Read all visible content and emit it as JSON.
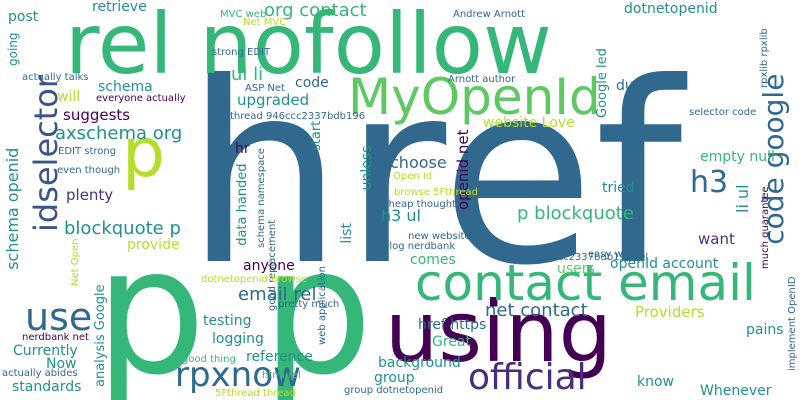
{
  "palette": {
    "teal_dark": "#31688e",
    "teal": "#21918c",
    "green": "#35b779",
    "green_bright": "#5ec962",
    "lime": "#b5de2b",
    "yellow": "#cbe11e",
    "purple": "#440154",
    "purple_mid": "#472d7b",
    "blue": "#3b528b",
    "indigo": "#46327e",
    "background": "#ffffff"
  },
  "words": [
    {
      "text": "href",
      "color": "#31688e"
    },
    {
      "text": "p p",
      "color": "#35b779"
    },
    {
      "text": "rel nofollow",
      "color": "#35b779"
    },
    {
      "text": "using",
      "color": "#440154"
    },
    {
      "text": "contact email",
      "color": "#35b779"
    },
    {
      "text": "MyOpenId",
      "color": "#5ec962"
    },
    {
      "text": "p",
      "color": "#b5de2b"
    },
    {
      "text": "official",
      "color": "#472d7b"
    },
    {
      "text": "idselector",
      "color": "#3b528b"
    },
    {
      "text": "rpxnow",
      "color": "#31688e"
    },
    {
      "text": "use",
      "color": "#31688e"
    },
    {
      "text": "code google",
      "color": "#31688e"
    },
    {
      "text": "blockquote p",
      "color": "#21918c"
    },
    {
      "text": "h3",
      "color": "#31688e"
    },
    {
      "text": "p blockquote",
      "color": "#35b779"
    },
    {
      "text": "email rel",
      "color": "#31688e"
    },
    {
      "text": "net contact",
      "color": "#31688e"
    },
    {
      "text": "org contact",
      "color": "#35b779"
    },
    {
      "text": "axschema org",
      "color": "#21918c"
    },
    {
      "text": "schema openid",
      "color": "#21918c"
    },
    {
      "text": "openid net",
      "color": "#440154"
    },
    {
      "text": "ul li",
      "color": "#35b779"
    },
    {
      "text": "h3 ul",
      "color": "#21918c"
    },
    {
      "text": "li ul",
      "color": "#21918c"
    },
    {
      "text": "analysis Google",
      "color": "#21918c"
    },
    {
      "text": "Google led",
      "color": "#21918c"
    },
    {
      "text": "upgraded",
      "color": "#21918c"
    },
    {
      "text": "suggests",
      "color": "#440154"
    },
    {
      "text": "plenty",
      "color": "#46327e"
    },
    {
      "text": "choose",
      "color": "#31688e"
    },
    {
      "text": "testing",
      "color": "#21918c"
    },
    {
      "text": "logging",
      "color": "#21918c"
    },
    {
      "text": "Currently",
      "color": "#21918c"
    },
    {
      "text": "reference",
      "color": "#21918c"
    },
    {
      "text": "href https",
      "color": "#31688e"
    },
    {
      "text": "Great",
      "color": "#35b779"
    },
    {
      "text": "background",
      "color": "#21918c"
    },
    {
      "text": "group",
      "color": "#21918c"
    },
    {
      "text": "Providers",
      "color": "#b5de2b"
    },
    {
      "text": "Whenever",
      "color": "#21918c"
    },
    {
      "text": "know",
      "color": "#21918c"
    },
    {
      "text": "pains",
      "color": "#21918c"
    },
    {
      "text": "standards",
      "color": "#21918c"
    },
    {
      "text": "Now",
      "color": "#21918c"
    },
    {
      "text": "anyone",
      "color": "#440154"
    },
    {
      "text": "provide",
      "color": "#b5de2b"
    },
    {
      "text": "users",
      "color": "#5ec962"
    },
    {
      "text": "comes",
      "color": "#35b779"
    },
    {
      "text": "openId account",
      "color": "#21918c"
    },
    {
      "text": "want",
      "color": "#46327e"
    },
    {
      "text": "tried",
      "color": "#21918c"
    },
    {
      "text": "empty null",
      "color": "#35b779"
    },
    {
      "text": "website Love",
      "color": "#b5de2b"
    },
    {
      "text": "dumb",
      "color": "#31688e"
    },
    {
      "text": "unless",
      "color": "#21918c"
    },
    {
      "text": "start",
      "color": "#21918c"
    },
    {
      "text": "code",
      "color": "#31688e"
    },
    {
      "text": "list",
      "color": "#21918c"
    },
    {
      "text": "hr",
      "color": "#440154"
    },
    {
      "text": "will",
      "color": "#b5de2b"
    },
    {
      "text": "schema",
      "color": "#21918c"
    },
    {
      "text": "retrieve",
      "color": "#21918c"
    },
    {
      "text": "post",
      "color": "#21918c"
    },
    {
      "text": "going",
      "color": "#21918c"
    },
    {
      "text": "dotnetopenid",
      "color": "#21918c"
    },
    {
      "text": "data handed",
      "color": "#21918c"
    },
    {
      "text": "Andrew Arnott",
      "color": "#31688e"
    },
    {
      "text": "Arnott author",
      "color": "#31688e"
    },
    {
      "text": "selector code",
      "color": "#31688e"
    },
    {
      "text": "946ccc2337bdb196 rel",
      "color": "#31688e"
    },
    {
      "text": "thread 946ccc2337bdb196",
      "color": "#31688e"
    },
    {
      "text": "strong EDIT",
      "color": "#31688e"
    },
    {
      "text": "EDIT strong",
      "color": "#31688e"
    },
    {
      "text": "actually talks",
      "color": "#31688e"
    },
    {
      "text": "everyone actually",
      "color": "#440154"
    },
    {
      "text": "ASP Net",
      "color": "#31688e"
    },
    {
      "text": "MVC web",
      "color": "#35b779"
    },
    {
      "text": "Net MVC",
      "color": "#b5de2b"
    },
    {
      "text": "even though",
      "color": "#31688e"
    },
    {
      "text": "Net Open",
      "color": "#b5de2b"
    },
    {
      "text": "schema namespace",
      "color": "#31688e"
    },
    {
      "text": "browse 5Fthread",
      "color": "#b5de2b"
    },
    {
      "text": "cheap thought",
      "color": "#31688e"
    },
    {
      "text": "new website",
      "color": "#31688e"
    },
    {
      "text": "blog nerdbank",
      "color": "#31688e"
    },
    {
      "text": "Open Id",
      "color": "#b5de2b"
    },
    {
      "text": "easy way",
      "color": "#31688e"
    },
    {
      "text": "much guarantee",
      "color": "#440154"
    },
    {
      "text": "rpxlib rpxlib",
      "color": "#31688e"
    },
    {
      "text": "implement OpenID",
      "color": "#31688e"
    },
    {
      "text": "good replacement",
      "color": "#31688e"
    },
    {
      "text": "dotnetopenid browse",
      "color": "#b5de2b"
    },
    {
      "text": "pretty much",
      "color": "#31688e"
    },
    {
      "text": "web application",
      "color": "#31688e"
    },
    {
      "text": "nerdbank net",
      "color": "#440154"
    },
    {
      "text": "actually abides",
      "color": "#31688e"
    },
    {
      "text": "good thing",
      "color": "#35b779"
    },
    {
      "text": "html rel",
      "color": "#35b779"
    },
    {
      "text": "5Fthread thread",
      "color": "#b5de2b"
    },
    {
      "text": "group dotnetopenid",
      "color": "#31688e"
    }
  ]
}
